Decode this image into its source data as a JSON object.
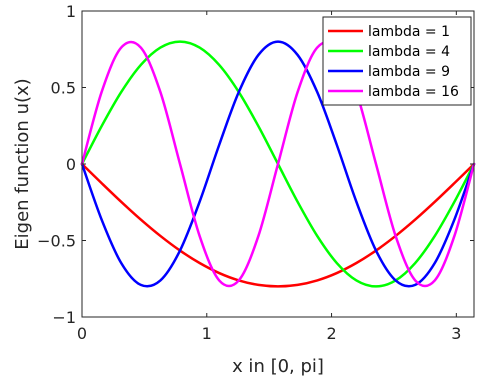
{
  "chart_data": {
    "type": "line",
    "title": "",
    "xlabel": "x in [0, pi]",
    "ylabel": "Eigen function u(x)",
    "xlim": [
      0,
      3.1416
    ],
    "ylim": [
      -1,
      1
    ],
    "x_ticks": [
      0,
      1,
      2,
      3
    ],
    "y_ticks": [
      -1,
      -0.5,
      0,
      0.5,
      1
    ],
    "x_tick_labels": [
      "0",
      "1",
      "2",
      "3"
    ],
    "y_tick_labels": [
      "−1",
      "−0.5",
      "0",
      "0.5",
      "1"
    ],
    "grid": false,
    "legend_position": "top-right",
    "x": [
      0,
      0.1571,
      0.3142,
      0.4712,
      0.6283,
      0.7854,
      0.9425,
      1.0996,
      1.2566,
      1.4137,
      1.5708,
      1.7279,
      1.885,
      2.042,
      2.1991,
      2.3562,
      2.5133,
      2.6704,
      2.8274,
      2.9845,
      3.1416
    ],
    "series": [
      {
        "name": "lambda = 1",
        "color": "#ff0000",
        "values": [
          0,
          -0.1251,
          -0.2472,
          -0.3632,
          -0.4702,
          -0.5657,
          -0.6472,
          -0.7128,
          -0.7608,
          -0.7901,
          -0.8,
          -0.7901,
          -0.7608,
          -0.7128,
          -0.6472,
          -0.5657,
          -0.4702,
          -0.3632,
          -0.2472,
          -0.1251,
          0
        ]
      },
      {
        "name": "lambda = 4",
        "color": "#00ff00",
        "values": [
          0,
          0.2472,
          0.4702,
          0.6472,
          0.7608,
          0.8,
          0.7608,
          0.6472,
          0.4702,
          0.2472,
          0,
          -0.2472,
          -0.4702,
          -0.6472,
          -0.7608,
          -0.8,
          -0.7608,
          -0.6472,
          -0.4702,
          -0.2472,
          0
        ]
      },
      {
        "name": "lambda = 9",
        "color": "#0000ff",
        "values": [
          0,
          -0.3632,
          -0.6472,
          -0.7901,
          -0.7608,
          -0.5657,
          -0.2472,
          0.1251,
          0.4702,
          0.7128,
          0.8,
          0.7128,
          0.4702,
          0.1251,
          -0.2472,
          -0.5657,
          -0.7608,
          -0.7901,
          -0.6472,
          -0.3632,
          0
        ]
      },
      {
        "name": "lambda = 16",
        "color": "#ff00ff",
        "values": [
          0,
          0.4702,
          0.7608,
          0.7608,
          0.4702,
          0,
          -0.4702,
          -0.7608,
          -0.7608,
          -0.4702,
          0,
          0.4702,
          0.7608,
          0.7608,
          0.4702,
          0,
          -0.4702,
          -0.7608,
          -0.7608,
          -0.4702,
          0
        ]
      }
    ]
  }
}
